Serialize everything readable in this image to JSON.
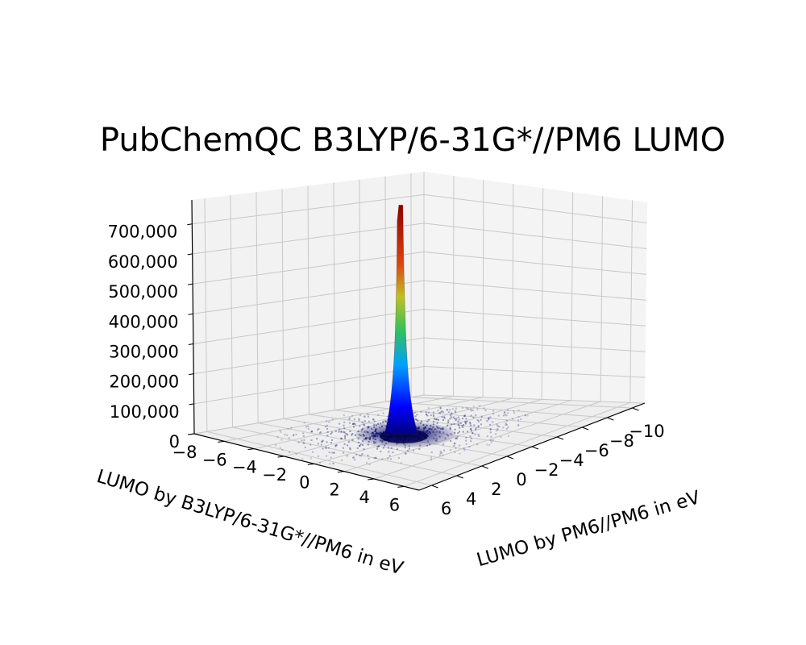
{
  "chart_data": {
    "type": "surface3d",
    "title": "PubChemQC B3LYP/6-31G*//PM6 LUMO",
    "x_axis": {
      "label": "LUMO by B3LYP/6-31G*//PM6 in eV",
      "ticks": [
        -8,
        -6,
        -4,
        -2,
        0,
        2,
        4,
        6
      ],
      "tick_labels": [
        "−8",
        "−6",
        "−4",
        "−2",
        "0",
        "2",
        "4",
        "6"
      ],
      "range": [
        -8,
        7
      ]
    },
    "y_axis": {
      "label": "LUMO by PM6//PM6 in eV",
      "ticks": [
        6,
        4,
        2,
        0,
        -2,
        -4,
        -6,
        -8,
        -10
      ],
      "tick_labels": [
        "6",
        "4",
        "2",
        "0",
        "−2",
        "−4",
        "−6",
        "−8",
        "−10"
      ],
      "range": [
        -11,
        7
      ]
    },
    "z_axis": {
      "label": "",
      "ticks": [
        0,
        100000,
        200000,
        300000,
        400000,
        500000,
        600000,
        700000
      ],
      "tick_labels": [
        "0",
        "100,000",
        "200,000",
        "300,000",
        "400,000",
        "500,000",
        "600,000",
        "700,000"
      ],
      "range": [
        0,
        780000
      ]
    },
    "peak": {
      "x": -1.0,
      "y": -1.0,
      "z": 760000
    },
    "colormap": [
      "#00007f",
      "#0000ff",
      "#00bfff",
      "#7fff7f",
      "#ffd700",
      "#ff4500",
      "#7f0000"
    ],
    "grid": true
  }
}
